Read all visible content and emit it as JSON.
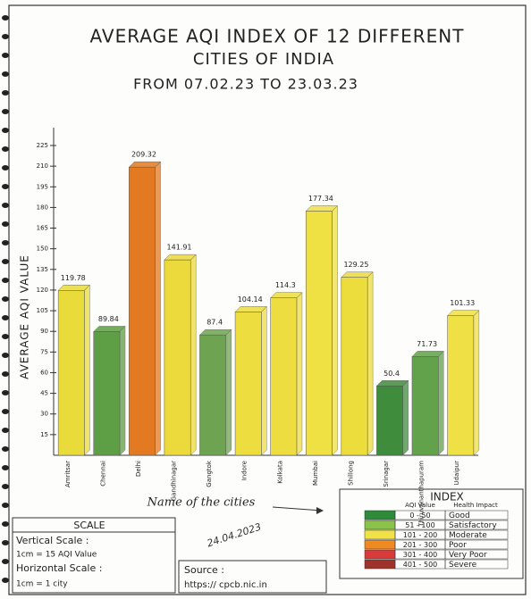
{
  "chart_data": {
    "type": "bar",
    "title_lines": [
      "AVERAGE AQI INDEX OF 12 DIFFERENT",
      "CITIES OF INDIA",
      "FROM 07.02.23   TO   23.03.23"
    ],
    "y_label": "AVERAGE AQI VALUE",
    "x_label": "Name of the cities",
    "categories": [
      "Amritsar",
      "Chennai",
      "Delhi",
      "Gandhinagar",
      "Gangtok",
      "Indore",
      "Kolkata",
      "Mumbai",
      "Shillong",
      "Srinagar",
      "Thiruvananthapuram",
      "Udaipur"
    ],
    "values": [
      119.78,
      89.84,
      209.32,
      141.91,
      87.4,
      104.14,
      114.3,
      177.34,
      129.25,
      50.4,
      71.73,
      101.33
    ],
    "colors": [
      "#e9dc3a",
      "#5e9e44",
      "#e37a22",
      "#ecd93c",
      "#6ea352",
      "#eedd3e",
      "#eedd40",
      "#efe043",
      "#ecdc3c",
      "#3f8c3c",
      "#62a24a",
      "#efe045"
    ],
    "ylim": [
      0,
      225
    ],
    "yticks": [
      15,
      30,
      45,
      60,
      75,
      90,
      105,
      120,
      135,
      150,
      165,
      180,
      195,
      210,
      225
    ]
  },
  "index": {
    "title": "INDEX",
    "headers": [
      "AQI Value",
      "Health Impact"
    ],
    "rows": [
      {
        "range": "0 - 50",
        "impact": "Good",
        "color": "#2e8b3a"
      },
      {
        "range": "51 - 100",
        "impact": "Satisfactory",
        "color": "#8bc34a"
      },
      {
        "range": "101 - 200",
        "impact": "Moderate",
        "color": "#f2e24a"
      },
      {
        "range": "201 - 300",
        "impact": "Poor",
        "color": "#ef8a22"
      },
      {
        "range": "301 - 400",
        "impact": "Very Poor",
        "color": "#d93a3a"
      },
      {
        "range": "401 - 500",
        "impact": "Severe",
        "color": "#a0322c"
      }
    ]
  },
  "scale": {
    "title": "SCALE",
    "vertical": "Vertical Scale :",
    "vertical_value": "1cm = 15 AQI Value",
    "horizontal": "Horizontal Scale :",
    "horizontal_value": "1cm = 1 city"
  },
  "source": {
    "label": "Source :",
    "url": "https:// cpcb.nic.in"
  },
  "signature_date": "24.04.2023"
}
